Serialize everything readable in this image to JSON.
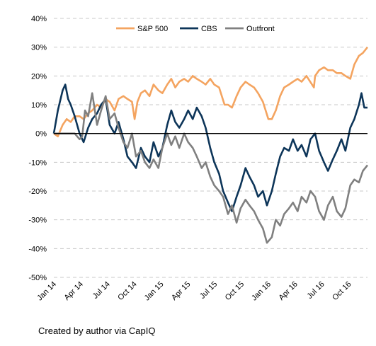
{
  "caption": "Created by author via CapIQ",
  "chart_data": {
    "type": "line",
    "title": "",
    "xlabel": "",
    "ylabel": "",
    "y_unit": "%",
    "ylim": [
      -50,
      40
    ],
    "yticks": [
      40,
      30,
      20,
      10,
      0,
      -10,
      -20,
      -30,
      -40,
      -50
    ],
    "ytick_labels": [
      "40%",
      "30%",
      "20%",
      "10%",
      "0%",
      "-10%",
      "-20%",
      "-30%",
      "-40%",
      "-50%"
    ],
    "xlim": [
      "2014-01",
      "2016-12"
    ],
    "xtick_labels": [
      "Jan 14",
      "Apr 14",
      "Jul 14",
      "Oct 14",
      "Jan 15",
      "Apr 15",
      "Jul 15",
      "Oct 15",
      "Jan 16",
      "Apr 16",
      "Jul 16",
      "Oct 16"
    ],
    "grid": "horizontal dashed",
    "legend": "top",
    "series": [
      {
        "name": "S&P 500",
        "color": "#F4A460",
        "values": [
          [
            "2014-01",
            0
          ],
          [
            "2014-01-15",
            -1
          ],
          [
            "2014-02",
            3
          ],
          [
            "2014-02-15",
            5
          ],
          [
            "2014-03",
            4
          ],
          [
            "2014-03-15",
            6
          ],
          [
            "2014-04",
            6
          ],
          [
            "2014-04-15",
            5
          ],
          [
            "2014-05",
            7
          ],
          [
            "2014-05-15",
            8
          ],
          [
            "2014-06",
            10
          ],
          [
            "2014-06-15",
            9
          ],
          [
            "2014-07",
            12
          ],
          [
            "2014-07-15",
            11
          ],
          [
            "2014-08",
            8
          ],
          [
            "2014-08-15",
            12
          ],
          [
            "2014-09",
            13
          ],
          [
            "2014-09-15",
            12
          ],
          [
            "2014-10",
            11
          ],
          [
            "2014-10-10",
            5
          ],
          [
            "2014-10-20",
            11
          ],
          [
            "2014-11",
            14
          ],
          [
            "2014-11-15",
            15
          ],
          [
            "2014-12",
            13
          ],
          [
            "2014-12-15",
            17
          ],
          [
            "2015-01",
            15
          ],
          [
            "2015-01-15",
            14
          ],
          [
            "2015-02",
            17
          ],
          [
            "2015-02-15",
            19
          ],
          [
            "2015-03",
            16
          ],
          [
            "2015-03-15",
            18
          ],
          [
            "2015-04",
            19
          ],
          [
            "2015-04-15",
            18
          ],
          [
            "2015-05",
            20
          ],
          [
            "2015-05-15",
            19
          ],
          [
            "2015-06",
            18
          ],
          [
            "2015-06-15",
            17
          ],
          [
            "2015-07",
            19
          ],
          [
            "2015-07-15",
            17
          ],
          [
            "2015-08",
            16
          ],
          [
            "2015-08-20",
            10
          ],
          [
            "2015-09",
            10
          ],
          [
            "2015-09-15",
            9
          ],
          [
            "2015-10",
            13
          ],
          [
            "2015-10-15",
            16
          ],
          [
            "2015-11",
            18
          ],
          [
            "2015-11-15",
            17
          ],
          [
            "2015-12",
            16
          ],
          [
            "2015-12-15",
            14
          ],
          [
            "2016-01",
            11
          ],
          [
            "2016-01-20",
            5
          ],
          [
            "2016-02",
            5
          ],
          [
            "2016-02-15",
            8
          ],
          [
            "2016-03",
            13
          ],
          [
            "2016-03-15",
            16
          ],
          [
            "2016-04",
            17
          ],
          [
            "2016-04-15",
            18
          ],
          [
            "2016-05",
            19
          ],
          [
            "2016-05-15",
            18
          ],
          [
            "2016-06",
            20
          ],
          [
            "2016-06-27",
            16
          ],
          [
            "2016-07",
            20
          ],
          [
            "2016-07-15",
            22
          ],
          [
            "2016-08",
            23
          ],
          [
            "2016-08-15",
            22
          ],
          [
            "2016-09",
            22
          ],
          [
            "2016-09-15",
            21
          ],
          [
            "2016-10",
            21
          ],
          [
            "2016-10-15",
            20
          ],
          [
            "2016-11",
            19
          ],
          [
            "2016-11-15",
            24
          ],
          [
            "2016-12",
            27
          ],
          [
            "2016-12-15",
            28
          ],
          [
            "2016-12-31",
            30
          ]
        ]
      },
      {
        "name": "CBS",
        "color": "#0D3559",
        "values": [
          [
            "2014-01",
            0
          ],
          [
            "2014-01-15",
            8
          ],
          [
            "2014-02",
            15
          ],
          [
            "2014-02-10",
            17
          ],
          [
            "2014-02-20",
            12
          ],
          [
            "2014-03",
            10
          ],
          [
            "2014-03-15",
            6
          ],
          [
            "2014-04",
            0
          ],
          [
            "2014-04-15",
            -3
          ],
          [
            "2014-05",
            2
          ],
          [
            "2014-05-15",
            5
          ],
          [
            "2014-06",
            7
          ],
          [
            "2014-06-15",
            10
          ],
          [
            "2014-07",
            12
          ],
          [
            "2014-07-15",
            3
          ],
          [
            "2014-08",
            0
          ],
          [
            "2014-08-15",
            4
          ],
          [
            "2014-09",
            -2
          ],
          [
            "2014-09-15",
            -8
          ],
          [
            "2014-10",
            -10
          ],
          [
            "2014-10-15",
            -12
          ],
          [
            "2014-11",
            -5
          ],
          [
            "2014-11-15",
            -8
          ],
          [
            "2014-12",
            -10
          ],
          [
            "2014-12-15",
            -3
          ],
          [
            "2015-01",
            -8
          ],
          [
            "2015-01-15",
            -5
          ],
          [
            "2015-02",
            3
          ],
          [
            "2015-02-15",
            8
          ],
          [
            "2015-03",
            4
          ],
          [
            "2015-03-15",
            2
          ],
          [
            "2015-04",
            5
          ],
          [
            "2015-04-15",
            8
          ],
          [
            "2015-05",
            5
          ],
          [
            "2015-05-15",
            9
          ],
          [
            "2015-06",
            6
          ],
          [
            "2015-06-15",
            2
          ],
          [
            "2015-07",
            -5
          ],
          [
            "2015-07-15",
            -10
          ],
          [
            "2015-08",
            -14
          ],
          [
            "2015-08-15",
            -20
          ],
          [
            "2015-09",
            -24
          ],
          [
            "2015-09-15",
            -27
          ],
          [
            "2015-10",
            -22
          ],
          [
            "2015-10-15",
            -18
          ],
          [
            "2015-11",
            -12
          ],
          [
            "2015-11-15",
            -15
          ],
          [
            "2015-12",
            -18
          ],
          [
            "2015-12-15",
            -22
          ],
          [
            "2016-01",
            -20
          ],
          [
            "2016-01-15",
            -25
          ],
          [
            "2016-02",
            -20
          ],
          [
            "2016-02-15",
            -14
          ],
          [
            "2016-03",
            -8
          ],
          [
            "2016-03-15",
            -5
          ],
          [
            "2016-04",
            -6
          ],
          [
            "2016-04-15",
            -2
          ],
          [
            "2016-05",
            -6
          ],
          [
            "2016-05-15",
            -4
          ],
          [
            "2016-06",
            -8
          ],
          [
            "2016-06-15",
            -2
          ],
          [
            "2016-07",
            0
          ],
          [
            "2016-07-15",
            -6
          ],
          [
            "2016-08",
            -10
          ],
          [
            "2016-08-15",
            -13
          ],
          [
            "2016-09",
            -9
          ],
          [
            "2016-09-15",
            -6
          ],
          [
            "2016-10",
            -2
          ],
          [
            "2016-10-15",
            -6
          ],
          [
            "2016-11",
            2
          ],
          [
            "2016-11-15",
            5
          ],
          [
            "2016-12",
            10
          ],
          [
            "2016-12-10",
            14
          ],
          [
            "2016-12-20",
            9
          ],
          [
            "2016-12-31",
            9
          ]
        ]
      },
      {
        "name": "Outfront",
        "color": "#808080",
        "values": [
          [
            "2014-01",
            0
          ],
          [
            "2014-01-15",
            0
          ],
          [
            "2014-02",
            0
          ],
          [
            "2014-02-15",
            0
          ],
          [
            "2014-03",
            0
          ],
          [
            "2014-03-15",
            0
          ],
          [
            "2014-04",
            -2
          ],
          [
            "2014-04-10",
            -1
          ],
          [
            "2014-04-20",
            8
          ],
          [
            "2014-05",
            6
          ],
          [
            "2014-05-15",
            14
          ],
          [
            "2014-06",
            3
          ],
          [
            "2014-06-15",
            8
          ],
          [
            "2014-07",
            13
          ],
          [
            "2014-07-15",
            5
          ],
          [
            "2014-08",
            7
          ],
          [
            "2014-08-15",
            2
          ],
          [
            "2014-09",
            -3
          ],
          [
            "2014-09-15",
            -5
          ],
          [
            "2014-10",
            0
          ],
          [
            "2014-10-15",
            -8
          ],
          [
            "2014-11",
            -6
          ],
          [
            "2014-11-15",
            -10
          ],
          [
            "2014-12",
            -12
          ],
          [
            "2014-12-15",
            -9
          ],
          [
            "2015-01",
            -12
          ],
          [
            "2015-01-15",
            -5
          ],
          [
            "2015-02",
            0
          ],
          [
            "2015-02-15",
            -4
          ],
          [
            "2015-03",
            -1
          ],
          [
            "2015-03-15",
            -5
          ],
          [
            "2015-04",
            0
          ],
          [
            "2015-04-15",
            -3
          ],
          [
            "2015-05",
            -5
          ],
          [
            "2015-05-15",
            -8
          ],
          [
            "2015-06",
            -12
          ],
          [
            "2015-06-15",
            -10
          ],
          [
            "2015-07",
            -15
          ],
          [
            "2015-07-15",
            -18
          ],
          [
            "2015-08",
            -20
          ],
          [
            "2015-08-15",
            -22
          ],
          [
            "2015-09",
            -28
          ],
          [
            "2015-09-15",
            -25
          ],
          [
            "2015-10",
            -31
          ],
          [
            "2015-10-15",
            -26
          ],
          [
            "2015-11",
            -23
          ],
          [
            "2015-11-15",
            -25
          ],
          [
            "2015-12",
            -27
          ],
          [
            "2015-12-15",
            -30
          ],
          [
            "2016-01",
            -33
          ],
          [
            "2016-01-15",
            -38
          ],
          [
            "2016-02",
            -36
          ],
          [
            "2016-02-15",
            -30
          ],
          [
            "2016-03",
            -32
          ],
          [
            "2016-03-15",
            -28
          ],
          [
            "2016-04",
            -26
          ],
          [
            "2016-04-15",
            -24
          ],
          [
            "2016-05",
            -27
          ],
          [
            "2016-05-15",
            -22
          ],
          [
            "2016-06",
            -24
          ],
          [
            "2016-06-15",
            -20
          ],
          [
            "2016-07",
            -22
          ],
          [
            "2016-07-15",
            -27
          ],
          [
            "2016-08",
            -30
          ],
          [
            "2016-08-15",
            -25
          ],
          [
            "2016-09",
            -22
          ],
          [
            "2016-09-15",
            -27
          ],
          [
            "2016-10",
            -29
          ],
          [
            "2016-10-15",
            -26
          ],
          [
            "2016-11",
            -18
          ],
          [
            "2016-11-15",
            -16
          ],
          [
            "2016-12",
            -17
          ],
          [
            "2016-12-15",
            -13
          ],
          [
            "2016-12-31",
            -11
          ]
        ]
      }
    ]
  }
}
